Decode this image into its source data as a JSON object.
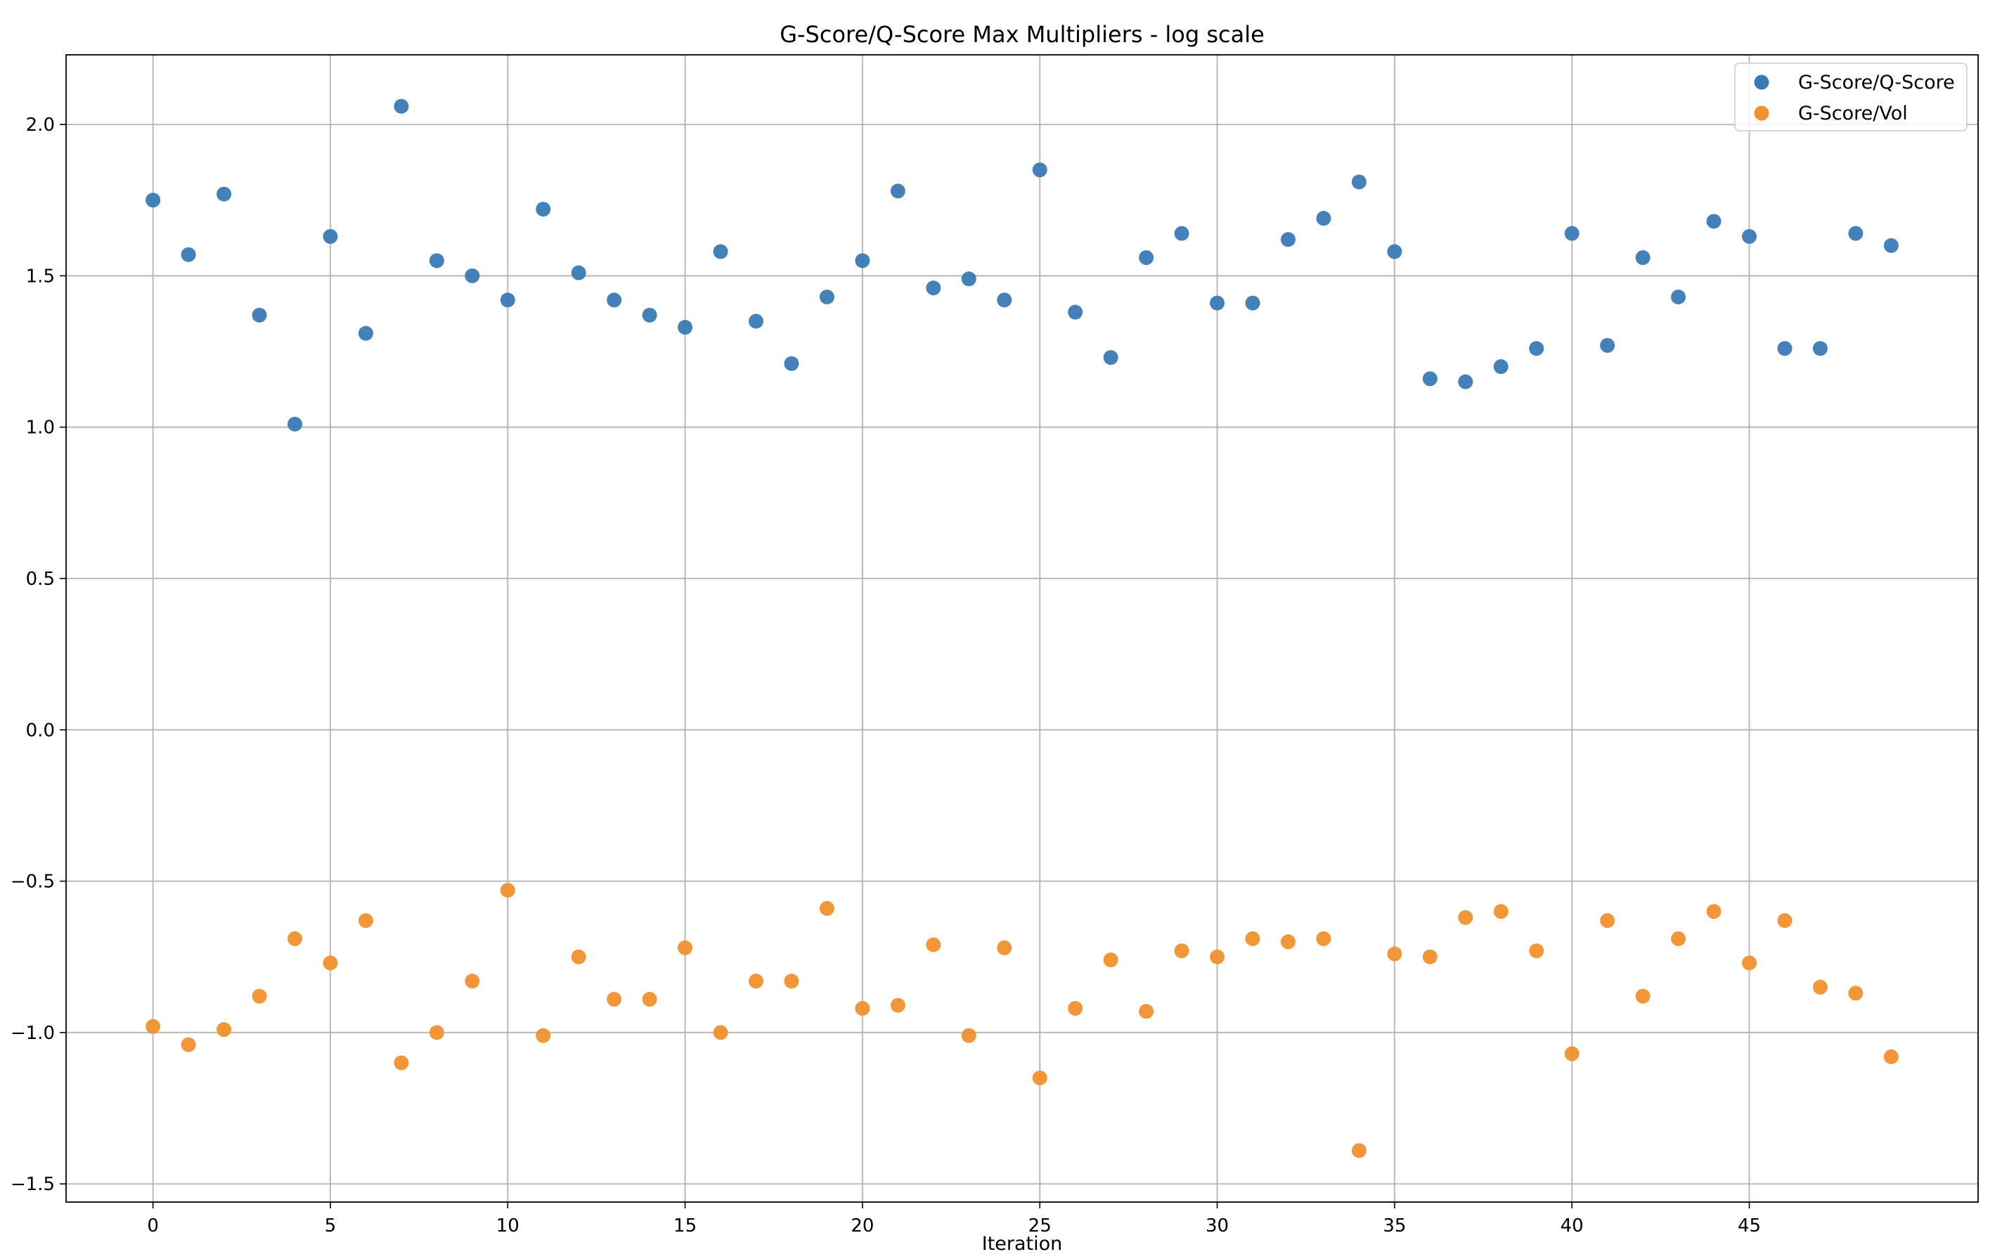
{
  "chart_data": {
    "type": "scatter",
    "title": "G-Score/Q-Score Max Multipliers - log scale",
    "xlabel": "Iteration",
    "ylabel": "",
    "xlim": [
      -2.45,
      51.45
    ],
    "ylim": [
      -1.56,
      2.23
    ],
    "x_ticks": [
      0,
      5,
      10,
      15,
      20,
      25,
      30,
      35,
      40,
      45
    ],
    "x_tick_labels": [
      "0",
      "5",
      "10",
      "15",
      "20",
      "25",
      "30",
      "35",
      "40",
      "45"
    ],
    "y_ticks": [
      -1.5,
      -1.0,
      -0.5,
      0.0,
      0.5,
      1.0,
      1.5,
      2.0
    ],
    "y_tick_labels": [
      "−1.5",
      "−1.0",
      "−0.5",
      "0.0",
      "0.5",
      "1.0",
      "1.5",
      "2.0"
    ],
    "grid": true,
    "legend_position": "top-right",
    "x": [
      0,
      1,
      2,
      3,
      4,
      5,
      6,
      7,
      8,
      9,
      10,
      11,
      12,
      13,
      14,
      15,
      16,
      17,
      18,
      19,
      20,
      21,
      22,
      23,
      24,
      25,
      26,
      27,
      28,
      29,
      30,
      31,
      32,
      33,
      34,
      35,
      36,
      37,
      38,
      39,
      40,
      41,
      42,
      43,
      44,
      45,
      46,
      47,
      48,
      49
    ],
    "series": [
      {
        "name": "G-Score/Q-Score",
        "color": "#3a7ab5",
        "values": [
          1.75,
          1.57,
          1.77,
          1.37,
          1.01,
          1.63,
          1.31,
          2.06,
          1.55,
          1.5,
          1.42,
          1.72,
          1.51,
          1.42,
          1.37,
          1.33,
          1.58,
          1.35,
          1.21,
          1.43,
          1.55,
          1.78,
          1.46,
          1.49,
          1.42,
          1.85,
          1.38,
          1.23,
          1.56,
          1.64,
          1.41,
          1.41,
          1.62,
          1.69,
          1.81,
          1.58,
          1.16,
          1.15,
          1.2,
          1.26,
          1.64,
          1.27,
          1.56,
          1.43,
          1.68,
          1.63,
          1.26,
          1.26,
          1.64,
          1.6
        ]
      },
      {
        "name": "G-Score/Vol",
        "color": "#f0912f",
        "values": [
          -0.98,
          -1.04,
          -0.99,
          -0.88,
          -0.69,
          -0.77,
          -0.63,
          -1.1,
          -1.0,
          -0.83,
          -0.53,
          -1.01,
          -0.75,
          -0.89,
          -0.89,
          -0.72,
          -1.0,
          -0.83,
          -0.83,
          -0.59,
          -0.92,
          -0.91,
          -0.71,
          -1.01,
          -0.72,
          -1.15,
          -0.92,
          -0.76,
          -0.93,
          -0.73,
          -0.75,
          -0.69,
          -0.7,
          -0.69,
          -1.39,
          -0.74,
          -0.75,
          -0.62,
          -0.6,
          -0.73,
          -1.07,
          -0.63,
          -0.88,
          -0.69,
          -0.6,
          -0.77,
          -0.63,
          -0.85,
          -0.87,
          -1.08
        ]
      }
    ]
  }
}
